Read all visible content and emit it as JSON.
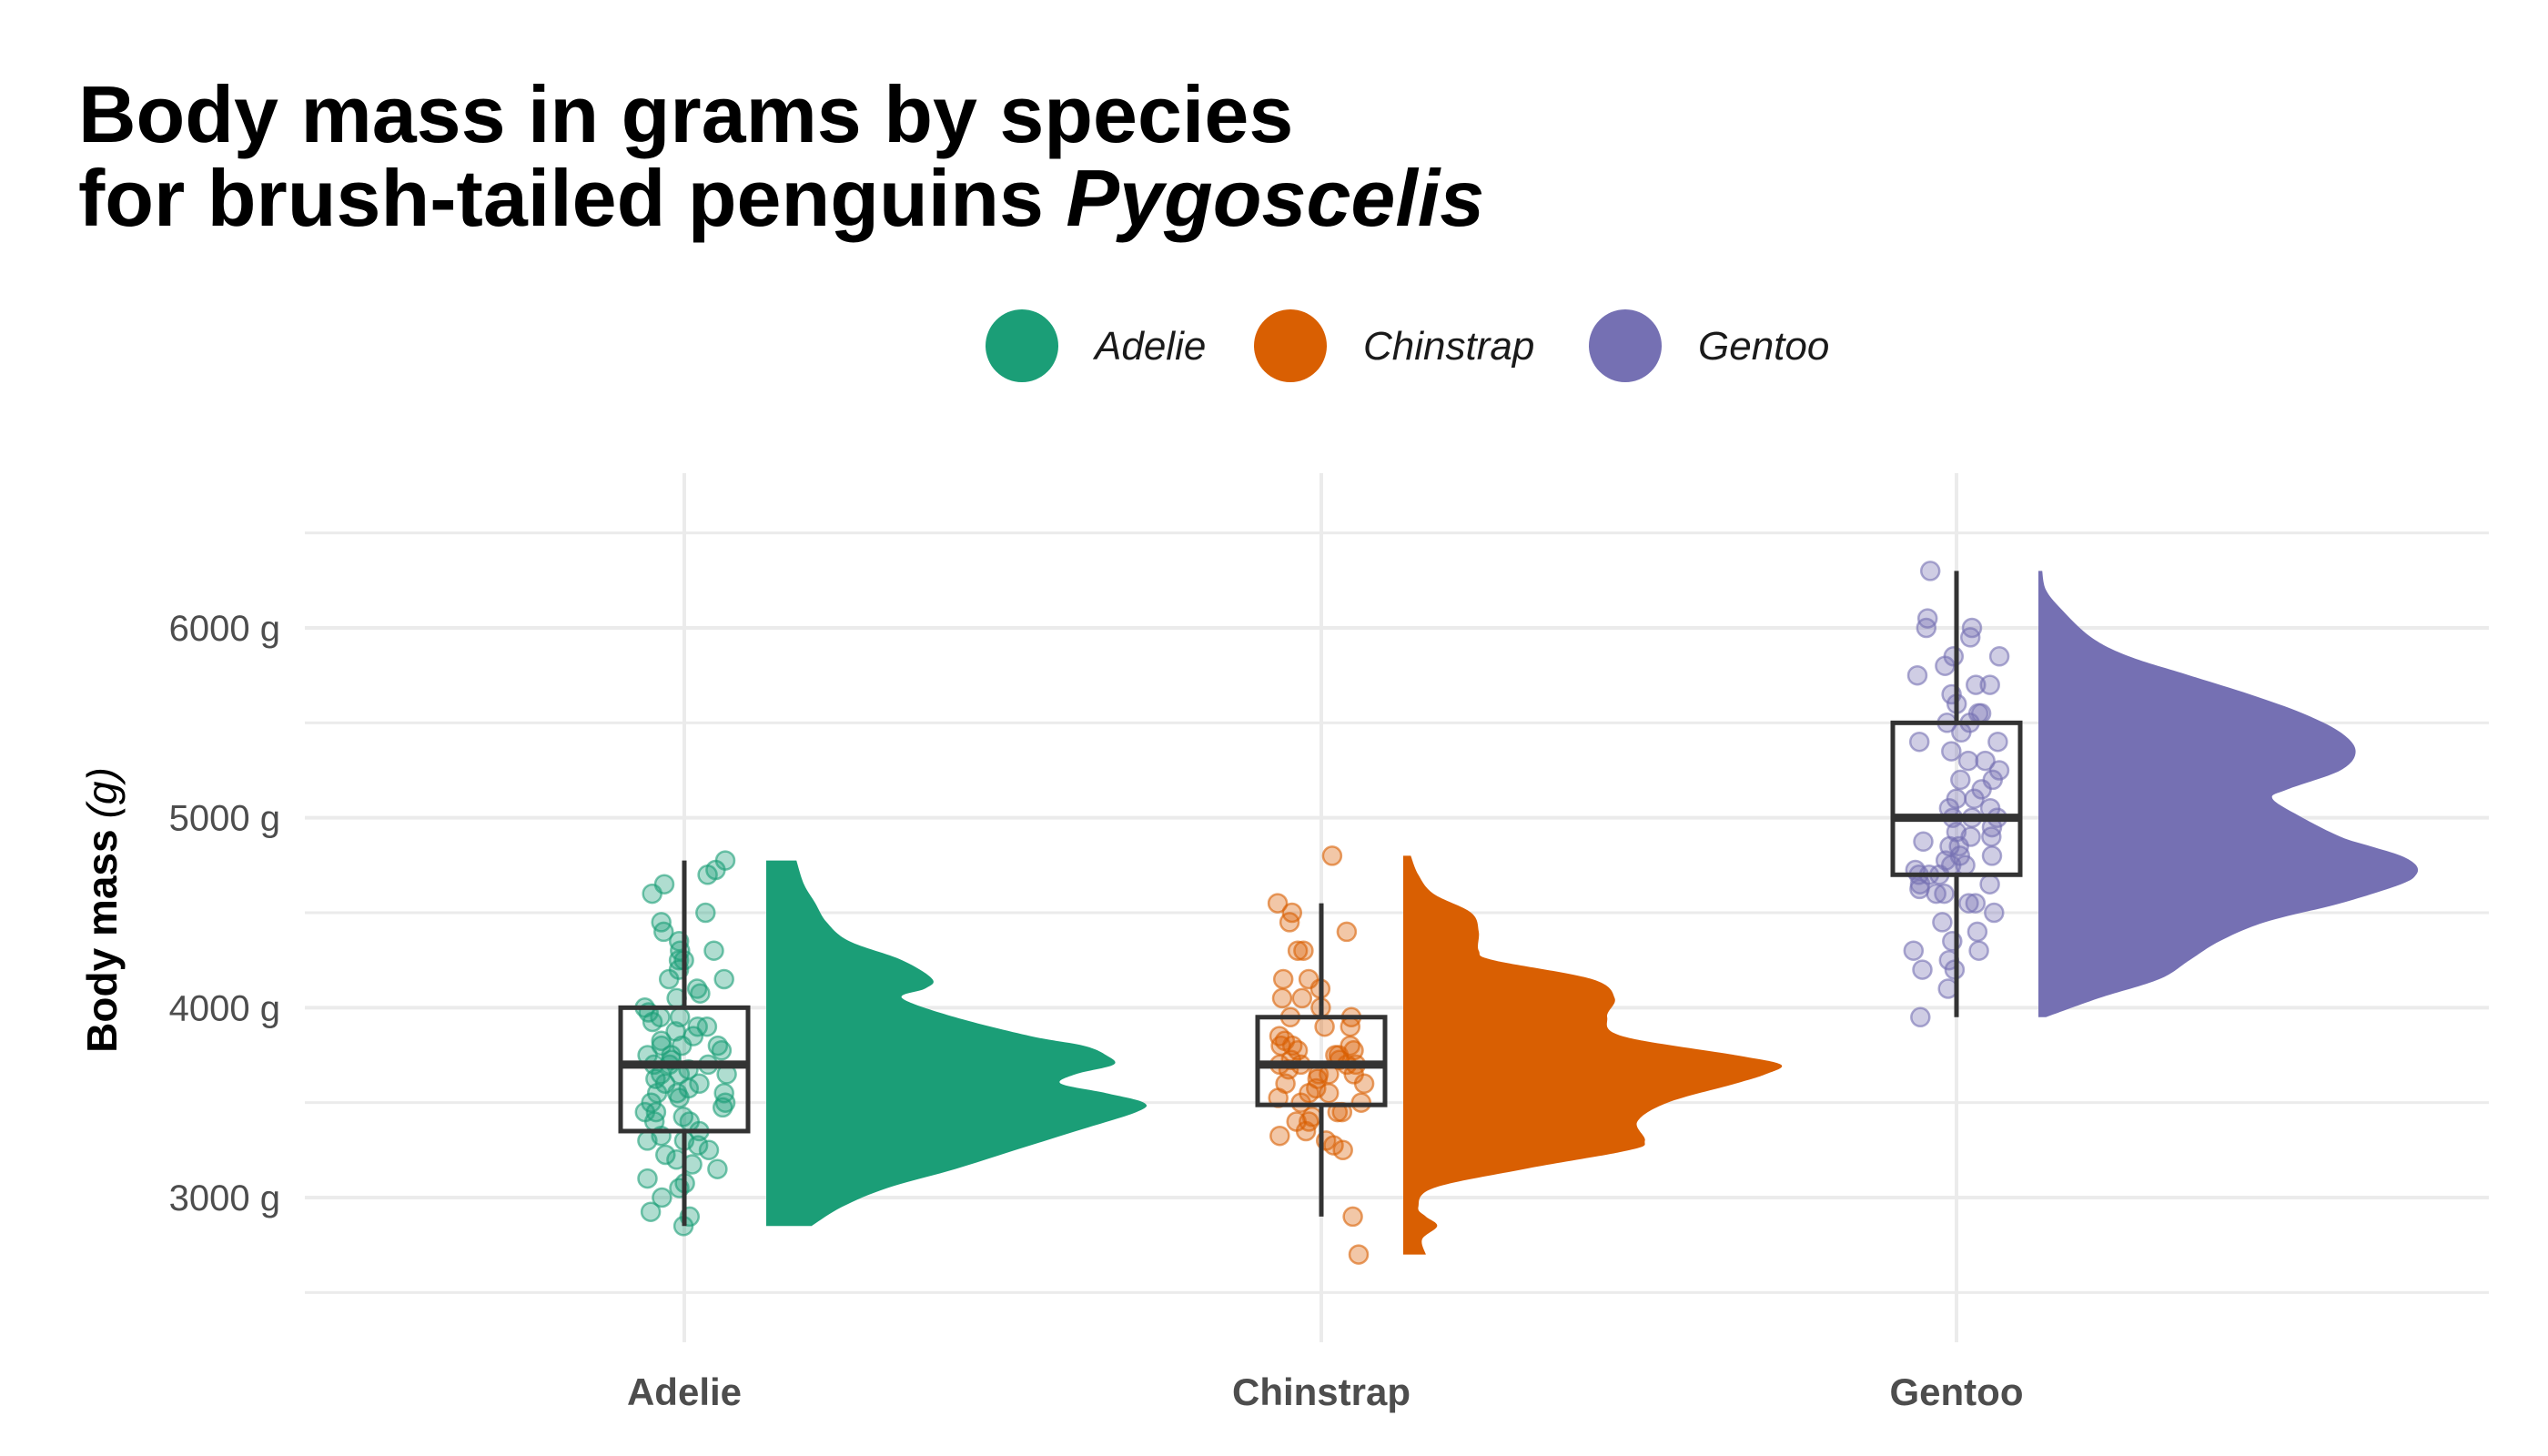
{
  "chart_data": {
    "type": "raincloud",
    "title_line1": "Body mass in grams by species",
    "title_line2_prefix": "for brush-tailed penguins ",
    "title_line2_italic": "Pygoscelis",
    "ylabel": "Body mass",
    "ylabel_unit": "(g)",
    "y_unit_suffix": " g",
    "ylim": [
      2400,
      6500
    ],
    "yticks": [
      3000,
      4000,
      5000,
      6000
    ],
    "ytick_labels": [
      "3000 g",
      "4000 g",
      "5000 g",
      "6000 g"
    ],
    "categories": [
      "Adelie",
      "Chinstrap",
      "Gentoo"
    ],
    "legend": {
      "position": "top",
      "items": [
        "Adelie",
        "Chinstrap",
        "Gentoo"
      ]
    },
    "grid": true,
    "series": [
      {
        "name": "Adelie",
        "color": "#1B9E77",
        "box": {
          "min": 2850,
          "q1": 3350,
          "median": 3700,
          "q3": 4000,
          "max": 4775
        },
        "density": {
          "y": [
            2850,
            2950,
            3050,
            3150,
            3250,
            3350,
            3450,
            3500,
            3550,
            3600,
            3650,
            3700,
            3750,
            3800,
            3850,
            3950,
            4050,
            4100,
            4150,
            4250,
            4350,
            4450,
            4550,
            4650,
            4775
          ],
          "d": [
            0.12,
            0.2,
            0.32,
            0.5,
            0.66,
            0.82,
            0.98,
            1.0,
            0.9,
            0.78,
            0.82,
            0.92,
            0.9,
            0.84,
            0.7,
            0.5,
            0.36,
            0.42,
            0.44,
            0.36,
            0.22,
            0.16,
            0.13,
            0.1,
            0.08
          ]
        },
        "points": [
          2850,
          2900,
          2925,
          3000,
          3050,
          3075,
          3100,
          3150,
          3175,
          3200,
          3225,
          3250,
          3275,
          3300,
          3300,
          3325,
          3350,
          3400,
          3400,
          3425,
          3450,
          3450,
          3475,
          3500,
          3500,
          3525,
          3550,
          3550,
          3550,
          3575,
          3600,
          3600,
          3625,
          3650,
          3650,
          3650,
          3675,
          3700,
          3700,
          3700,
          3725,
          3750,
          3750,
          3775,
          3800,
          3800,
          3800,
          3825,
          3850,
          3875,
          3900,
          3900,
          3925,
          3950,
          3950,
          3975,
          4000,
          4050,
          4075,
          4100,
          4150,
          4150,
          4200,
          4250,
          4250,
          4300,
          4300,
          4350,
          4400,
          4450,
          4500,
          4600,
          4650,
          4700,
          4725,
          4775
        ]
      },
      {
        "name": "Chinstrap",
        "color": "#D95F02",
        "box": {
          "min": 2900,
          "q1": 3488,
          "median": 3700,
          "q3": 3950,
          "max": 4550
        },
        "density": {
          "y": [
            2700,
            2780,
            2850,
            2900,
            2950,
            3050,
            3150,
            3250,
            3300,
            3400,
            3500,
            3600,
            3650,
            3700,
            3750,
            3850,
            3950,
            4050,
            4150,
            4250,
            4300,
            4400,
            4500,
            4600,
            4700,
            4800
          ],
          "d": [
            0.06,
            0.05,
            0.09,
            0.06,
            0.04,
            0.08,
            0.32,
            0.6,
            0.64,
            0.62,
            0.7,
            0.88,
            0.96,
            1.0,
            0.88,
            0.58,
            0.54,
            0.56,
            0.5,
            0.24,
            0.2,
            0.2,
            0.18,
            0.08,
            0.04,
            0.02
          ]
        },
        "points": [
          2700,
          2900,
          3250,
          3275,
          3300,
          3325,
          3350,
          3400,
          3400,
          3425,
          3450,
          3450,
          3500,
          3500,
          3525,
          3550,
          3550,
          3575,
          3600,
          3600,
          3625,
          3650,
          3650,
          3650,
          3675,
          3700,
          3700,
          3700,
          3700,
          3725,
          3725,
          3750,
          3750,
          3775,
          3775,
          3800,
          3800,
          3800,
          3825,
          3850,
          3900,
          3900,
          3950,
          3950,
          4000,
          4050,
          4050,
          4100,
          4150,
          4150,
          4300,
          4300,
          4400,
          4450,
          4500,
          4550,
          4800
        ]
      },
      {
        "name": "Gentoo",
        "color": "#7570B3",
        "box": {
          "min": 3950,
          "q1": 4700,
          "median": 5000,
          "q3": 5500,
          "max": 6300
        },
        "density": {
          "y": [
            3950,
            4050,
            4150,
            4250,
            4350,
            4450,
            4550,
            4650,
            4700,
            4750,
            4800,
            4850,
            4900,
            5000,
            5100,
            5150,
            5250,
            5350,
            5450,
            5550,
            5650,
            5750,
            5850,
            5950,
            6100,
            6200,
            6300
          ],
          "d": [
            0.02,
            0.16,
            0.32,
            0.4,
            0.48,
            0.6,
            0.8,
            0.96,
            1.0,
            1.0,
            0.96,
            0.88,
            0.8,
            0.7,
            0.62,
            0.66,
            0.8,
            0.84,
            0.8,
            0.7,
            0.56,
            0.4,
            0.24,
            0.14,
            0.06,
            0.02,
            0.01
          ]
        },
        "points": [
          3950,
          4100,
          4200,
          4200,
          4250,
          4300,
          4300,
          4350,
          4400,
          4450,
          4500,
          4550,
          4550,
          4600,
          4600,
          4625,
          4650,
          4650,
          4700,
          4700,
          4700,
          4725,
          4750,
          4750,
          4775,
          4800,
          4800,
          4850,
          4850,
          4875,
          4900,
          4900,
          4925,
          4950,
          5000,
          5000,
          5000,
          5050,
          5050,
          5100,
          5100,
          5150,
          5200,
          5200,
          5250,
          5300,
          5300,
          5350,
          5400,
          5400,
          5450,
          5500,
          5500,
          5550,
          5550,
          5600,
          5650,
          5700,
          5700,
          5750,
          5800,
          5850,
          5850,
          5950,
          6000,
          6000,
          6050,
          6300
        ]
      }
    ]
  }
}
